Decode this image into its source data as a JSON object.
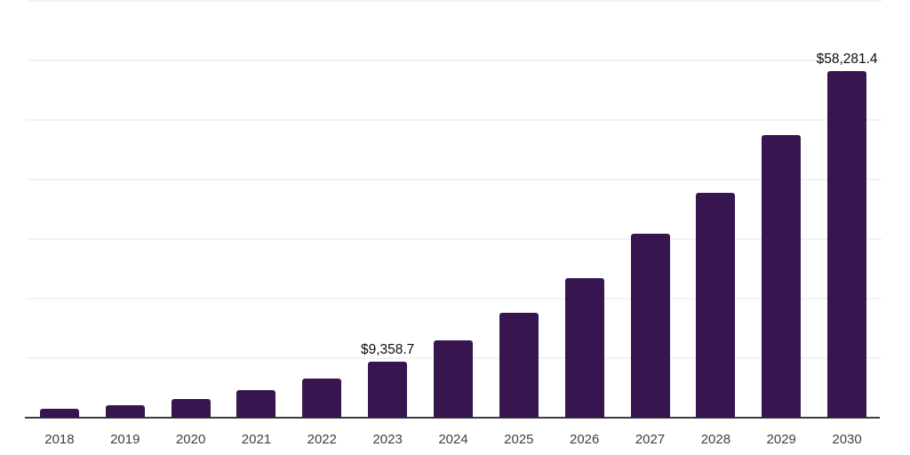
{
  "chart_data": {
    "type": "bar",
    "title": "",
    "xlabel": "",
    "ylabel": "",
    "categories": [
      "2018",
      "2019",
      "2020",
      "2021",
      "2022",
      "2023",
      "2024",
      "2025",
      "2026",
      "2027",
      "2028",
      "2029",
      "2030"
    ],
    "values": [
      1490,
      2090,
      3130,
      4630,
      6570,
      9358.7,
      12990,
      17610,
      23430,
      30900,
      37760,
      47390,
      58281.4
    ],
    "data_labels": [
      "",
      "",
      "",
      "",
      "",
      "$9,358.7",
      "",
      "",
      "",
      "",
      "",
      "",
      "$58,281.4"
    ],
    "values_note": "Only 2023 and 2030 carry on-chart value labels; remaining values estimated from bar heights against gridlines",
    "ylim": [
      0,
      70000
    ],
    "gridline_step": 10000,
    "grid": "horizontal",
    "y_tick_labels_visible": false,
    "legend_position": "none",
    "colors": {
      "bar_fill": "#371650",
      "gridline": "#f3f3f5",
      "axis_line": "#3b3b3b",
      "value_label_text": "#0d0d0d",
      "tick_label_text": "#404040",
      "background": "#ffffff"
    }
  }
}
